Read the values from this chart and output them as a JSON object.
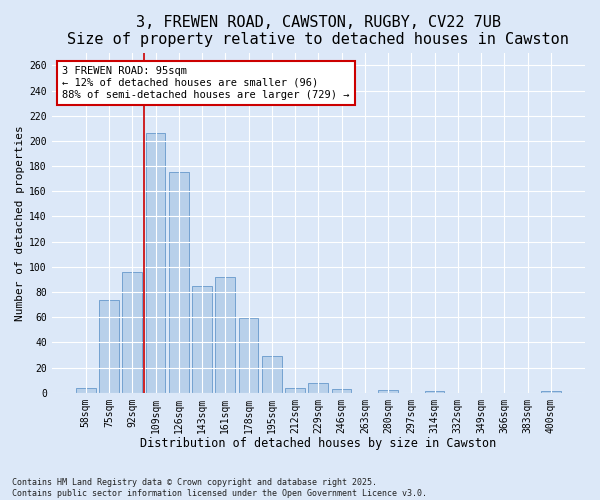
{
  "title": "3, FREWEN ROAD, CAWSTON, RUGBY, CV22 7UB",
  "subtitle": "Size of property relative to detached houses in Cawston",
  "xlabel": "Distribution of detached houses by size in Cawston",
  "ylabel": "Number of detached properties",
  "categories": [
    "58sqm",
    "75sqm",
    "92sqm",
    "109sqm",
    "126sqm",
    "143sqm",
    "161sqm",
    "178sqm",
    "195sqm",
    "212sqm",
    "229sqm",
    "246sqm",
    "263sqm",
    "280sqm",
    "297sqm",
    "314sqm",
    "332sqm",
    "349sqm",
    "366sqm",
    "383sqm",
    "400sqm"
  ],
  "values": [
    4,
    74,
    96,
    206,
    175,
    85,
    92,
    59,
    29,
    4,
    8,
    3,
    0,
    2,
    0,
    1,
    0,
    0,
    0,
    0,
    1
  ],
  "bar_color": "#b8d0ea",
  "bar_edge_color": "#6699cc",
  "vline_color": "#cc0000",
  "annotation_text": "3 FREWEN ROAD: 95sqm\n← 12% of detached houses are smaller (96)\n88% of semi-detached houses are larger (729) →",
  "annotation_box_color": "#ffffff",
  "annotation_box_edge": "#cc0000",
  "ylim": [
    0,
    270
  ],
  "yticks": [
    0,
    20,
    40,
    60,
    80,
    100,
    120,
    140,
    160,
    180,
    200,
    220,
    240,
    260
  ],
  "background_color": "#dce8f8",
  "plot_bg_color": "#dce8f8",
  "grid_color": "#ffffff",
  "footer": "Contains HM Land Registry data © Crown copyright and database right 2025.\nContains public sector information licensed under the Open Government Licence v3.0.",
  "title_fontsize": 11,
  "subtitle_fontsize": 9.5,
  "xlabel_fontsize": 8.5,
  "ylabel_fontsize": 8,
  "tick_fontsize": 7,
  "annotation_fontsize": 7.5,
  "footer_fontsize": 6
}
